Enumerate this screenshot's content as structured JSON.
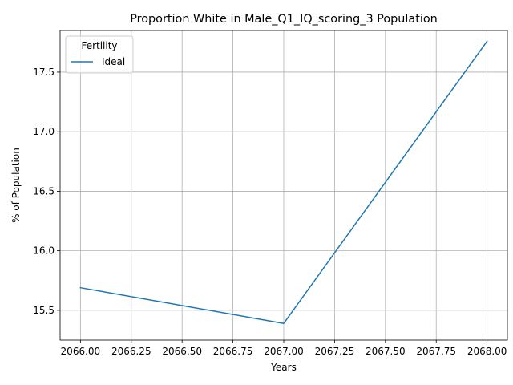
{
  "chart_data": {
    "type": "line",
    "title": "Proportion White in Male_Q1_IQ_scoring_3 Population",
    "xlabel": "Years",
    "ylabel": "% of Population",
    "xlim": [
      2065.9,
      2068.1
    ],
    "ylim": [
      15.25,
      17.85
    ],
    "x_ticks": [
      2066.0,
      2066.25,
      2066.5,
      2066.75,
      2067.0,
      2067.25,
      2067.5,
      2067.75,
      2068.0
    ],
    "x_tick_labels": [
      "2066.00",
      "2066.25",
      "2066.50",
      "2066.75",
      "2067.00",
      "2067.25",
      "2067.50",
      "2067.75",
      "2068.00"
    ],
    "y_ticks": [
      15.5,
      16.0,
      16.5,
      17.0,
      17.5
    ],
    "y_tick_labels": [
      "15.5",
      "16.0",
      "16.5",
      "17.0",
      "17.5"
    ],
    "grid": true,
    "legend": {
      "title": "Fertility",
      "placement": "top-left"
    },
    "series": [
      {
        "name": "Ideal",
        "color": "#1f77b4",
        "x": [
          2066,
          2067,
          2068
        ],
        "y": [
          15.69,
          15.39,
          17.76
        ]
      }
    ]
  }
}
